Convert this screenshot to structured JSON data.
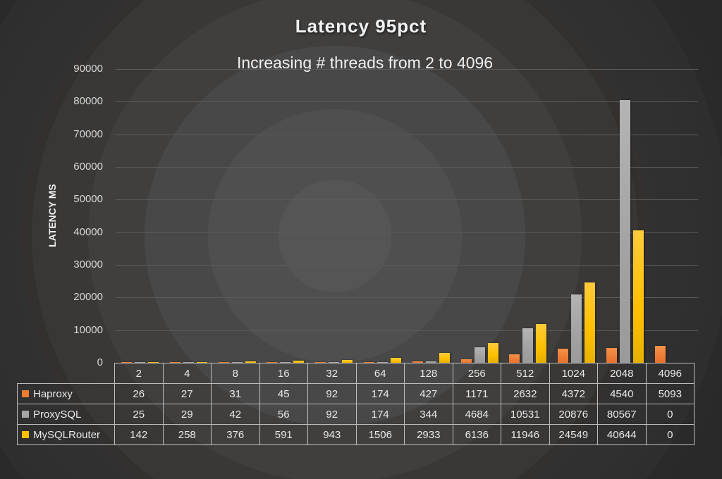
{
  "title": "Latency 95pct",
  "subtitle": "Increasing # threads from 2 to 4096",
  "y_axis": {
    "label": "LATENCY MS",
    "ticks": [
      "90000",
      "80000",
      "70000",
      "60000",
      "50000",
      "40000",
      "30000",
      "20000",
      "10000",
      "0"
    ]
  },
  "table": {
    "header": [
      "2",
      "4",
      "8",
      "16",
      "32",
      "64",
      "128",
      "256",
      "512",
      "1024",
      "2048",
      "4096"
    ],
    "rows": [
      {
        "label": "Haproxy",
        "values": [
          "26",
          "27",
          "31",
          "45",
          "92",
          "174",
          "427",
          "1171",
          "2632",
          "4372",
          "4540",
          "5093"
        ]
      },
      {
        "label": "ProxySQL",
        "values": [
          "25",
          "29",
          "42",
          "56",
          "92",
          "174",
          "344",
          "4684",
          "10531",
          "20876",
          "80567",
          "0"
        ]
      },
      {
        "label": "MySQLRouter",
        "values": [
          "142",
          "258",
          "376",
          "591",
          "943",
          "1506",
          "2933",
          "6136",
          "11946",
          "24549",
          "40644",
          "0"
        ]
      }
    ]
  },
  "chart_data": {
    "type": "bar",
    "title": "Latency 95pct",
    "subtitle": "Increasing # threads from 2 to 4096",
    "xlabel": "",
    "ylabel": "LATENCY MS",
    "ylim": [
      0,
      90000
    ],
    "grid": true,
    "legend_position": "data-table",
    "categories": [
      "2",
      "4",
      "8",
      "16",
      "32",
      "64",
      "128",
      "256",
      "512",
      "1024",
      "2048",
      "4096"
    ],
    "series": [
      {
        "name": "Haproxy",
        "color": "#ED7D31",
        "values": [
          26,
          27,
          31,
          45,
          92,
          174,
          427,
          1171,
          2632,
          4372,
          4540,
          5093
        ]
      },
      {
        "name": "ProxySQL",
        "color": "#A5A5A5",
        "values": [
          25,
          29,
          42,
          56,
          92,
          174,
          344,
          4684,
          10531,
          20876,
          80567,
          0
        ]
      },
      {
        "name": "MySQLRouter",
        "color": "#FFC000",
        "values": [
          142,
          258,
          376,
          591,
          943,
          1506,
          2933,
          6136,
          11946,
          24549,
          40644,
          0
        ]
      }
    ]
  }
}
